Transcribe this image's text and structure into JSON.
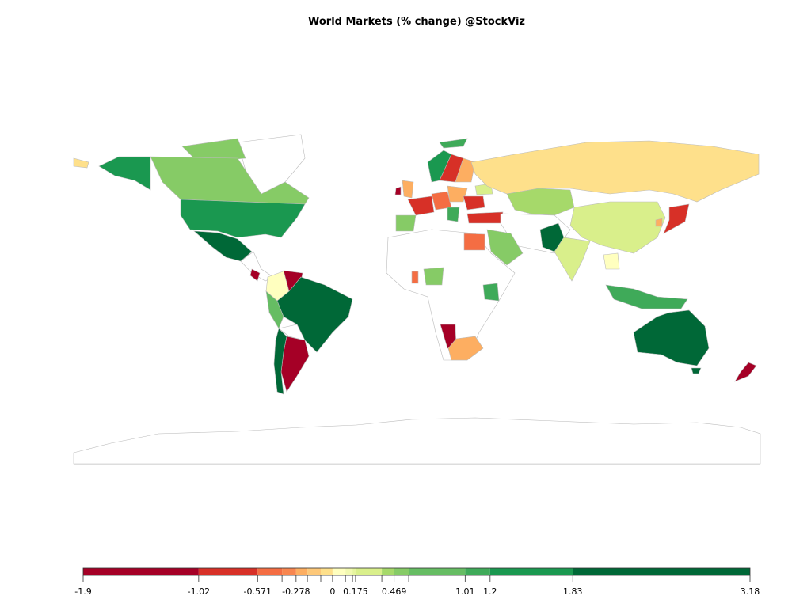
{
  "chart_data": {
    "type": "choropleth",
    "title": "World Markets (% change) @StockViz",
    "legend": {
      "breaks": [
        -1.9,
        -1.02,
        -0.571,
        -0.385,
        -0.278,
        -0.192,
        -0.09,
        0,
        0.098,
        0.152,
        0.175,
        0.375,
        0.469,
        0.58,
        1.01,
        1.2,
        1.83,
        3.18
      ],
      "colors": [
        "#a50026",
        "#d73027",
        "#f46d43",
        "#f8864f",
        "#fdae61",
        "#fdc879",
        "#fee08b",
        "#ffffbf",
        "#f2f9b0",
        "#e6f59d",
        "#d9ef8b",
        "#a6d96a",
        "#86cb66",
        "#66bd63",
        "#3faa59",
        "#1a9850",
        "#006837"
      ],
      "ticks": [
        -1.9,
        -1.02,
        -0.571,
        -0.278,
        0,
        0.175,
        0.469,
        1.01,
        1.2,
        1.83,
        3.18
      ]
    }
  }
}
